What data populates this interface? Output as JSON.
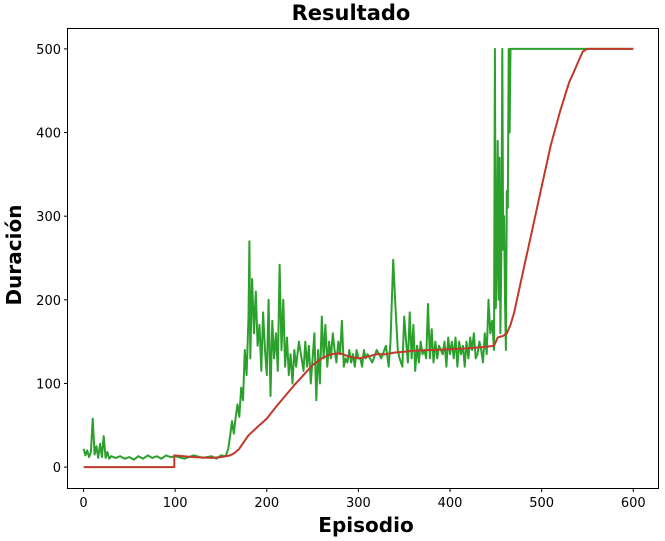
{
  "chart_data": {
    "type": "line",
    "title": "Resultado",
    "xlabel": "Episodio",
    "ylabel": "Duración",
    "xlim": [
      -17,
      627
    ],
    "ylim": [
      -25,
      525
    ],
    "xticks": [
      0,
      100,
      200,
      300,
      400,
      500,
      600
    ],
    "yticks": [
      0,
      100,
      200,
      300,
      400,
      500
    ],
    "grid": false,
    "series": [
      {
        "color": "#2ca02c",
        "values": [
          [
            0,
            22
          ],
          [
            2,
            14
          ],
          [
            4,
            20
          ],
          [
            6,
            12
          ],
          [
            8,
            18
          ],
          [
            10,
            58
          ],
          [
            12,
            15
          ],
          [
            14,
            25
          ],
          [
            16,
            11
          ],
          [
            18,
            28
          ],
          [
            20,
            12
          ],
          [
            22,
            37
          ],
          [
            24,
            11
          ],
          [
            26,
            18
          ],
          [
            28,
            10
          ],
          [
            30,
            13
          ],
          [
            35,
            11
          ],
          [
            40,
            13
          ],
          [
            45,
            10
          ],
          [
            50,
            12
          ],
          [
            55,
            9
          ],
          [
            60,
            13
          ],
          [
            65,
            10
          ],
          [
            70,
            14
          ],
          [
            75,
            11
          ],
          [
            80,
            13
          ],
          [
            85,
            10
          ],
          [
            90,
            14
          ],
          [
            95,
            12
          ],
          [
            100,
            13
          ],
          [
            110,
            10
          ],
          [
            120,
            14
          ],
          [
            130,
            11
          ],
          [
            140,
            13
          ],
          [
            145,
            10
          ],
          [
            150,
            14
          ],
          [
            155,
            13
          ],
          [
            158,
            22
          ],
          [
            160,
            38
          ],
          [
            162,
            55
          ],
          [
            164,
            40
          ],
          [
            166,
            60
          ],
          [
            168,
            75
          ],
          [
            170,
            60
          ],
          [
            172,
            95
          ],
          [
            174,
            80
          ],
          [
            176,
            140
          ],
          [
            178,
            110
          ],
          [
            180,
            180
          ],
          [
            181,
            270
          ],
          [
            182,
            130
          ],
          [
            184,
            225
          ],
          [
            186,
            160
          ],
          [
            188,
            210
          ],
          [
            190,
            145
          ],
          [
            192,
            170
          ],
          [
            194,
            115
          ],
          [
            196,
            185
          ],
          [
            198,
            140
          ],
          [
            200,
            110
          ],
          [
            202,
            200
          ],
          [
            204,
            85
          ],
          [
            206,
            175
          ],
          [
            208,
            130
          ],
          [
            210,
            160
          ],
          [
            212,
            115
          ],
          [
            214,
            242
          ],
          [
            216,
            140
          ],
          [
            218,
            200
          ],
          [
            220,
            120
          ],
          [
            222,
            155
          ],
          [
            224,
            110
          ],
          [
            226,
            135
          ],
          [
            228,
            100
          ],
          [
            230,
            140
          ],
          [
            232,
            120
          ],
          [
            235,
            150
          ],
          [
            238,
            130
          ],
          [
            240,
            115
          ],
          [
            242,
            150
          ],
          [
            244,
            120
          ],
          [
            246,
            145
          ],
          [
            248,
            100
          ],
          [
            250,
            130
          ],
          [
            252,
            160
          ],
          [
            254,
            80
          ],
          [
            256,
            140
          ],
          [
            258,
            100
          ],
          [
            260,
            180
          ],
          [
            262,
            130
          ],
          [
            264,
            170
          ],
          [
            266,
            120
          ],
          [
            268,
            150
          ],
          [
            270,
            130
          ],
          [
            272,
            160
          ],
          [
            274,
            140
          ],
          [
            276,
            125
          ],
          [
            278,
            150
          ],
          [
            280,
            135
          ],
          [
            282,
            175
          ],
          [
            284,
            120
          ],
          [
            286,
            130
          ],
          [
            288,
            125
          ],
          [
            290,
            140
          ],
          [
            292,
            125
          ],
          [
            294,
            135
          ],
          [
            296,
            120
          ],
          [
            298,
            140
          ],
          [
            300,
            130
          ],
          [
            302,
            130
          ],
          [
            304,
            120
          ],
          [
            306,
            140
          ],
          [
            308,
            130
          ],
          [
            310,
            135
          ],
          [
            315,
            125
          ],
          [
            320,
            140
          ],
          [
            325,
            130
          ],
          [
            330,
            145
          ],
          [
            333,
            120
          ],
          [
            335,
            150
          ],
          [
            338,
            248
          ],
          [
            340,
            200
          ],
          [
            343,
            140
          ],
          [
            345,
            130
          ],
          [
            348,
            120
          ],
          [
            350,
            180
          ],
          [
            352,
            150
          ],
          [
            354,
            125
          ],
          [
            356,
            185
          ],
          [
            358,
            130
          ],
          [
            360,
            170
          ],
          [
            362,
            115
          ],
          [
            364,
            145
          ],
          [
            366,
            125
          ],
          [
            368,
            150
          ],
          [
            370,
            135
          ],
          [
            372,
            140
          ],
          [
            374,
            130
          ],
          [
            376,
            195
          ],
          [
            378,
            130
          ],
          [
            380,
            165
          ],
          [
            382,
            125
          ],
          [
            384,
            150
          ],
          [
            386,
            130
          ],
          [
            388,
            145
          ],
          [
            390,
            140
          ],
          [
            392,
            135
          ],
          [
            394,
            150
          ],
          [
            396,
            120
          ],
          [
            398,
            155
          ],
          [
            400,
            135
          ],
          [
            402,
            150
          ],
          [
            404,
            130
          ],
          [
            406,
            155
          ],
          [
            408,
            120
          ],
          [
            410,
            150
          ],
          [
            412,
            135
          ],
          [
            414,
            145
          ],
          [
            416,
            120
          ],
          [
            418,
            150
          ],
          [
            420,
            130
          ],
          [
            422,
            155
          ],
          [
            424,
            140
          ],
          [
            426,
            160
          ],
          [
            428,
            130
          ],
          [
            430,
            135
          ],
          [
            432,
            150
          ],
          [
            434,
            140
          ],
          [
            436,
            125
          ],
          [
            438,
            160
          ],
          [
            440,
            135
          ],
          [
            442,
            200
          ],
          [
            444,
            160
          ],
          [
            446,
            175
          ],
          [
            448,
            140
          ],
          [
            449,
            500
          ],
          [
            450,
            190
          ],
          [
            451,
            250
          ],
          [
            452,
            390
          ],
          [
            453,
            200
          ],
          [
            454,
            370
          ],
          [
            455,
            160
          ],
          [
            456,
            250
          ],
          [
            457,
            500
          ],
          [
            458,
            260
          ],
          [
            459,
            300
          ],
          [
            460,
            200
          ],
          [
            461,
            140
          ],
          [
            462,
            330
          ],
          [
            463,
            310
          ],
          [
            464,
            500
          ],
          [
            465,
            400
          ],
          [
            466,
            500
          ],
          [
            470,
            500
          ],
          [
            480,
            500
          ],
          [
            500,
            500
          ],
          [
            520,
            500
          ],
          [
            540,
            500
          ],
          [
            560,
            500
          ],
          [
            580,
            500
          ],
          [
            600,
            500
          ]
        ]
      },
      {
        "color": "#c0392b",
        "values": [
          [
            0,
            0
          ],
          [
            99,
            0
          ],
          [
            99,
            14
          ],
          [
            120,
            12
          ],
          [
            140,
            11
          ],
          [
            150,
            12
          ],
          [
            160,
            14
          ],
          [
            165,
            17
          ],
          [
            170,
            22
          ],
          [
            175,
            30
          ],
          [
            180,
            38
          ],
          [
            190,
            48
          ],
          [
            200,
            58
          ],
          [
            210,
            72
          ],
          [
            220,
            85
          ],
          [
            230,
            98
          ],
          [
            240,
            110
          ],
          [
            250,
            122
          ],
          [
            260,
            130
          ],
          [
            270,
            135
          ],
          [
            280,
            136
          ],
          [
            290,
            132
          ],
          [
            300,
            130
          ],
          [
            310,
            132
          ],
          [
            320,
            135
          ],
          [
            330,
            135
          ],
          [
            340,
            137
          ],
          [
            350,
            138
          ],
          [
            360,
            139
          ],
          [
            380,
            140
          ],
          [
            400,
            141
          ],
          [
            420,
            142
          ],
          [
            440,
            144
          ],
          [
            448,
            145
          ],
          [
            452,
            155
          ],
          [
            458,
            157
          ],
          [
            462,
            160
          ],
          [
            466,
            170
          ],
          [
            470,
            185
          ],
          [
            480,
            235
          ],
          [
            490,
            285
          ],
          [
            500,
            335
          ],
          [
            510,
            385
          ],
          [
            520,
            425
          ],
          [
            530,
            460
          ],
          [
            535,
            472
          ],
          [
            540,
            485
          ],
          [
            545,
            497
          ],
          [
            550,
            500
          ],
          [
            570,
            500
          ],
          [
            600,
            500
          ]
        ]
      }
    ]
  }
}
